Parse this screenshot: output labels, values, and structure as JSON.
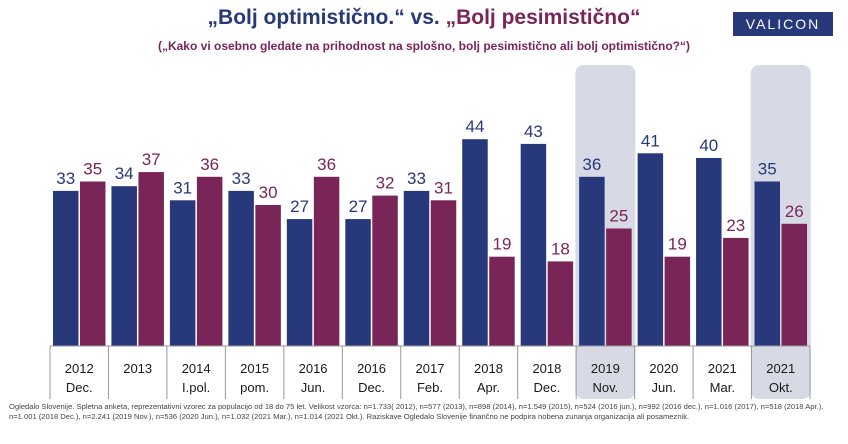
{
  "logo_text": "VALICON",
  "chart_data": {
    "type": "bar",
    "title_part1": "„Bolj optimistično.“",
    "title_vs": " vs. ",
    "title_part2": "„Bolj pesimistično“",
    "subtitle": "(„Kako vi osebno gledate na prihodnost na splošno, bolj pesimistično ali bolj optimistično?“)",
    "categories": [
      [
        "2012",
        "Dec."
      ],
      [
        "2013",
        ""
      ],
      [
        "2014",
        "I.pol."
      ],
      [
        "2015",
        "pom."
      ],
      [
        "2016",
        "Jun."
      ],
      [
        "2016",
        "Dec."
      ],
      [
        "2017",
        "Feb."
      ],
      [
        "2018",
        "Apr."
      ],
      [
        "2018",
        "Dec."
      ],
      [
        "2019",
        "Nov."
      ],
      [
        "2020",
        "Jun."
      ],
      [
        "2021",
        "Mar."
      ],
      [
        "2021",
        "Okt."
      ]
    ],
    "highlighted": [
      9,
      12
    ],
    "series": [
      {
        "key": "opt",
        "values": [
          33,
          34,
          31,
          33,
          27,
          27,
          33,
          44,
          43,
          36,
          41,
          40,
          35
        ]
      },
      {
        "key": "pes",
        "values": [
          35,
          37,
          36,
          30,
          36,
          32,
          31,
          19,
          18,
          25,
          19,
          23,
          26
        ]
      }
    ],
    "ylim": [
      0,
      50
    ],
    "colors": {
      "opt": "#27397a",
      "pes": "#7a2558",
      "highlight": "#d7dae5",
      "baseline": "#999999",
      "label_opt": "#27397a",
      "label_pes": "#7a2558"
    }
  },
  "footnote": "Ogledalo Slovenije. Spletna anketa, reprezentativni vzorec za populacijo od 18 do 75 let. Velikost vzorca: n=1.733( 2012), n=577 (2013), n=898 (2014), n=1.549 (2015), n=524 (2016 jun.), n=992 (2016 dec.), n=1.016 (2017), n=518 (2018 Apr.), n=1.001 (2018 Dec.), n=2.241 (2019 Nov.), n=536 (2020 Jun.), n=1.032 (2021 Mar.), n=1.014 (2021 Okt.). Raziskave Ogledalo Slovenije finančno ne podpira nobena zunanja organizacija ali posameznik."
}
